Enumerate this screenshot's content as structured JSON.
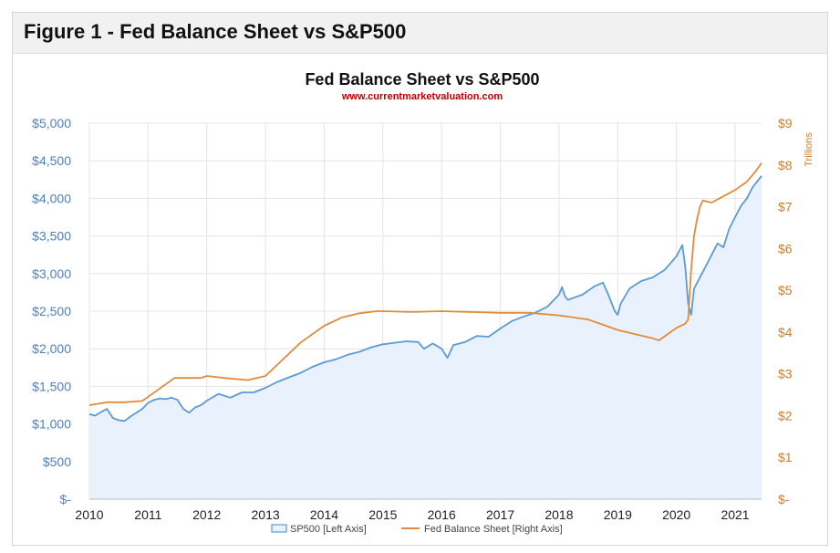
{
  "figure": {
    "header": "Figure 1 - Fed Balance Sheet vs S&P500"
  },
  "chart_data": {
    "type": "line",
    "title": "Fed Balance Sheet vs S&P500",
    "subtitle": "www.currentmarketvaluation.com",
    "xlabel": "",
    "ylabel_left": "",
    "ylabel_right": "Trillions",
    "x_ticks": [
      "2010",
      "2011",
      "2012",
      "2013",
      "2014",
      "2015",
      "2016",
      "2017",
      "2018",
      "2019",
      "2020",
      "2021"
    ],
    "y_left_ticks": [
      "$-",
      "$500",
      "$1,000",
      "$1,500",
      "$2,000",
      "$2,500",
      "$3,000",
      "$3,500",
      "$4,000",
      "$4,500",
      "$5,000"
    ],
    "y_right_ticks": [
      "$-",
      "$1",
      "$2",
      "$3",
      "$4",
      "$5",
      "$6",
      "$7",
      "$8",
      "$9"
    ],
    "xlim": [
      2010,
      2021.45
    ],
    "ylim_left": [
      0,
      5000
    ],
    "ylim_right": [
      0,
      9
    ],
    "grid": true,
    "legend": "bottom-center",
    "colors": {
      "sp500": "#5b9bd5",
      "fed": "#e08c3c",
      "area": "#e8f1fc",
      "left_axis": "#4f81bd",
      "right_axis": "#c9802e",
      "subtitle": "#c00000"
    },
    "series": [
      {
        "name": "SP500 [Left Axis]",
        "axis": "left",
        "style": "area",
        "x": [
          2010,
          2010.1,
          2010.2,
          2010.3,
          2010.4,
          2010.5,
          2010.6,
          2010.7,
          2010.8,
          2010.9,
          2011,
          2011.1,
          2011.2,
          2011.3,
          2011.4,
          2011.5,
          2011.6,
          2011.7,
          2011.8,
          2011.9,
          2012,
          2012.2,
          2012.4,
          2012.6,
          2012.8,
          2013,
          2013.2,
          2013.4,
          2013.6,
          2013.8,
          2014,
          2014.2,
          2014.4,
          2014.6,
          2014.8,
          2015,
          2015.2,
          2015.4,
          2015.6,
          2015.7,
          2015.85,
          2016,
          2016.1,
          2016.2,
          2016.4,
          2016.6,
          2016.8,
          2017,
          2017.2,
          2017.4,
          2017.6,
          2017.8,
          2018,
          2018.05,
          2018.1,
          2018.15,
          2018.4,
          2018.6,
          2018.75,
          2018.85,
          2018.95,
          2019,
          2019.05,
          2019.2,
          2019.4,
          2019.6,
          2019.8,
          2020,
          2020.1,
          2020.15,
          2020.2,
          2020.25,
          2020.3,
          2020.4,
          2020.5,
          2020.6,
          2020.7,
          2020.8,
          2020.9,
          2021,
          2021.1,
          2021.2,
          2021.3,
          2021.4,
          2021.45
        ],
        "y": [
          1130,
          1110,
          1160,
          1200,
          1080,
          1050,
          1040,
          1100,
          1150,
          1200,
          1280,
          1320,
          1340,
          1330,
          1350,
          1320,
          1200,
          1150,
          1220,
          1250,
          1310,
          1400,
          1350,
          1420,
          1420,
          1480,
          1560,
          1620,
          1680,
          1760,
          1820,
          1860,
          1920,
          1960,
          2020,
          2060,
          2080,
          2100,
          2090,
          2000,
          2070,
          2000,
          1880,
          2050,
          2090,
          2170,
          2160,
          2270,
          2370,
          2430,
          2480,
          2560,
          2720,
          2820,
          2700,
          2650,
          2720,
          2830,
          2880,
          2700,
          2500,
          2450,
          2600,
          2800,
          2900,
          2950,
          3050,
          3230,
          3380,
          3100,
          2600,
          2450,
          2800,
          2950,
          3100,
          3250,
          3400,
          3350,
          3600,
          3750,
          3900,
          4000,
          4150,
          4250,
          4300
        ]
      },
      {
        "name": "Fed Balance Sheet [Right Axis]",
        "axis": "right",
        "style": "line",
        "x": [
          2010,
          2010.3,
          2010.6,
          2010.9,
          2011,
          2011.2,
          2011.45,
          2011.6,
          2011.9,
          2012,
          2012.3,
          2012.7,
          2013,
          2013.3,
          2013.6,
          2014,
          2014.3,
          2014.6,
          2014.9,
          2015,
          2015.5,
          2016,
          2016.5,
          2017,
          2017.5,
          2018,
          2018.5,
          2018.8,
          2019,
          2019.3,
          2019.6,
          2019.7,
          2019.8,
          2020,
          2020.15,
          2020.2,
          2020.25,
          2020.3,
          2020.35,
          2020.4,
          2020.45,
          2020.6,
          2020.8,
          2021,
          2021.2,
          2021.35,
          2021.45
        ],
        "y": [
          2.25,
          2.32,
          2.32,
          2.35,
          2.45,
          2.65,
          2.9,
          2.9,
          2.9,
          2.95,
          2.9,
          2.85,
          2.95,
          3.35,
          3.75,
          4.15,
          4.35,
          4.45,
          4.5,
          4.5,
          4.48,
          4.5,
          4.48,
          4.46,
          4.46,
          4.4,
          4.3,
          4.15,
          4.05,
          3.95,
          3.85,
          3.8,
          3.9,
          4.1,
          4.2,
          4.3,
          5.5,
          6.3,
          6.7,
          7.0,
          7.15,
          7.1,
          7.25,
          7.4,
          7.6,
          7.85,
          8.05
        ]
      }
    ]
  }
}
